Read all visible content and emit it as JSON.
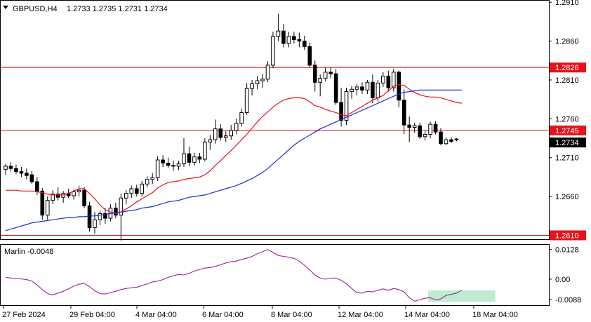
{
  "header": {
    "symbol_text": "GBPUSD,H4",
    "ohlc_text": "1.2733 1.2735 1.2731 1.2734"
  },
  "indicator": {
    "label_text": "Marlin -0.0048"
  },
  "colors": {
    "background": "#ffffff",
    "candle": "#000000",
    "fast_ma": "#e8121a",
    "slow_ma": "#1a2bd8",
    "level_line": "#e8121a",
    "marlin": "#9a239e",
    "highlight_box": "#a9e6c2",
    "price_tag": "#000000"
  },
  "chart_data": [
    {
      "type": "candlestick",
      "title": "GBPUSD,H4",
      "ylim": [
        1.2605,
        1.2912
      ],
      "y_ticks": [
        "1.2910",
        "1.2860",
        "1.2810",
        "1.2760",
        "1.2710",
        "1.2660"
      ],
      "x_tick_labels": [
        "27 Feb 2024",
        "29 Feb 04:00",
        "4 Mar 04:00",
        "6 Mar 04:00",
        "8 Mar 04:00",
        "12 Mar 04:00",
        "14 Mar 04:00",
        "18 Mar 04:00"
      ],
      "levels": [
        {
          "value": 1.2826,
          "label": "1.2826"
        },
        {
          "value": 1.2745,
          "label": "1.2745"
        },
        {
          "value": 1.261,
          "label": "1.2610"
        }
      ],
      "last_price": {
        "value": 1.2734,
        "label": "1.2734"
      },
      "ohlc": [
        [
          1.2695,
          1.2702,
          1.2688,
          1.2699
        ],
        [
          1.2699,
          1.2704,
          1.2692,
          1.2696
        ],
        [
          1.2696,
          1.2701,
          1.2689,
          1.2692
        ],
        [
          1.2692,
          1.2698,
          1.2685,
          1.269
        ],
        [
          1.269,
          1.2696,
          1.2682,
          1.2687
        ],
        [
          1.2688,
          1.2693,
          1.2676,
          1.2679
        ],
        [
          1.2679,
          1.2685,
          1.2662,
          1.2667
        ],
        [
          1.2667,
          1.2671,
          1.263,
          1.2636
        ],
        [
          1.2636,
          1.266,
          1.263,
          1.2655
        ],
        [
          1.2655,
          1.2668,
          1.265,
          1.2663
        ],
        [
          1.2663,
          1.2672,
          1.2655,
          1.2659
        ],
        [
          1.2659,
          1.2667,
          1.2652,
          1.2664
        ],
        [
          1.2664,
          1.267,
          1.2658,
          1.2661
        ],
        [
          1.2661,
          1.2669,
          1.2656,
          1.2666
        ],
        [
          1.2666,
          1.2674,
          1.266,
          1.2668
        ],
        [
          1.2668,
          1.2672,
          1.2645,
          1.2648
        ],
        [
          1.2648,
          1.2653,
          1.2615,
          1.262
        ],
        [
          1.262,
          1.264,
          1.2612,
          1.263
        ],
        [
          1.263,
          1.2642,
          1.2623,
          1.2638
        ],
        [
          1.2638,
          1.2645,
          1.2625,
          1.2632
        ],
        [
          1.2632,
          1.265,
          1.2628,
          1.2645
        ],
        [
          1.2645,
          1.2652,
          1.2632,
          1.2636
        ],
        [
          1.2636,
          1.2664,
          1.2603,
          1.2658
        ],
        [
          1.2658,
          1.2668,
          1.265,
          1.2664
        ],
        [
          1.2664,
          1.2674,
          1.2658,
          1.267
        ],
        [
          1.267,
          1.2675,
          1.266,
          1.2664
        ],
        [
          1.2664,
          1.268,
          1.266,
          1.2676
        ],
        [
          1.2676,
          1.2686,
          1.2672,
          1.2682
        ],
        [
          1.2682,
          1.269,
          1.2676,
          1.2684
        ],
        [
          1.2684,
          1.2712,
          1.268,
          1.2707
        ],
        [
          1.2707,
          1.2713,
          1.2698,
          1.2703
        ],
        [
          1.2703,
          1.271,
          1.2697,
          1.27
        ],
        [
          1.27,
          1.2706,
          1.2693,
          1.2699
        ],
        [
          1.2699,
          1.2706,
          1.2694,
          1.2702
        ],
        [
          1.2702,
          1.2735,
          1.2698,
          1.2715
        ],
        [
          1.2715,
          1.2724,
          1.2699,
          1.2704
        ],
        [
          1.2704,
          1.2716,
          1.27,
          1.2711
        ],
        [
          1.2711,
          1.2716,
          1.2703,
          1.2708
        ],
        [
          1.2708,
          1.2735,
          1.2705,
          1.273
        ],
        [
          1.273,
          1.2739,
          1.272,
          1.2733
        ],
        [
          1.2733,
          1.2759,
          1.2728,
          1.2747
        ],
        [
          1.2747,
          1.2753,
          1.2732,
          1.2736
        ],
        [
          1.2736,
          1.2744,
          1.273,
          1.2738
        ],
        [
          1.2738,
          1.2752,
          1.2733,
          1.2745
        ],
        [
          1.2745,
          1.276,
          1.274,
          1.2754
        ],
        [
          1.2754,
          1.2773,
          1.275,
          1.2768
        ],
        [
          1.2768,
          1.2806,
          1.2765,
          1.2799
        ],
        [
          1.2799,
          1.281,
          1.279,
          1.2805
        ],
        [
          1.2805,
          1.2815,
          1.2798,
          1.2809
        ],
        [
          1.2809,
          1.2818,
          1.28,
          1.2811
        ],
        [
          1.2811,
          1.2834,
          1.2807,
          1.2829
        ],
        [
          1.2829,
          1.2872,
          1.2825,
          1.2866
        ],
        [
          1.2866,
          1.2895,
          1.286,
          1.2873
        ],
        [
          1.2873,
          1.2882,
          1.2852,
          1.2857
        ],
        [
          1.2857,
          1.2872,
          1.2852,
          1.2866
        ],
        [
          1.2866,
          1.2872,
          1.2857,
          1.2862
        ],
        [
          1.2862,
          1.2871,
          1.2852,
          1.286
        ],
        [
          1.286,
          1.2867,
          1.2849,
          1.2853
        ],
        [
          1.2853,
          1.2858,
          1.2826,
          1.2829
        ],
        [
          1.2829,
          1.2835,
          1.2795,
          1.2807
        ],
        [
          1.2807,
          1.2817,
          1.2789,
          1.2812
        ],
        [
          1.2812,
          1.2826,
          1.2808,
          1.282
        ],
        [
          1.282,
          1.2826,
          1.2812,
          1.2818
        ],
        [
          1.2818,
          1.2824,
          1.2778,
          1.2781
        ],
        [
          1.2781,
          1.28,
          1.275,
          1.2758
        ],
        [
          1.2758,
          1.28,
          1.2752,
          1.2795
        ],
        [
          1.2795,
          1.2802,
          1.2786,
          1.2798
        ],
        [
          1.2798,
          1.2805,
          1.279,
          1.2801
        ],
        [
          1.2801,
          1.2807,
          1.2792,
          1.2797
        ],
        [
          1.2797,
          1.281,
          1.2792,
          1.2807
        ],
        [
          1.2807,
          1.2817,
          1.278,
          1.2787
        ],
        [
          1.2787,
          1.281,
          1.2782,
          1.2806
        ],
        [
          1.2806,
          1.282,
          1.2801,
          1.2815
        ],
        [
          1.2815,
          1.2822,
          1.2795,
          1.28
        ],
        [
          1.28,
          1.2824,
          1.2795,
          1.282
        ],
        [
          1.282,
          1.2822,
          1.2775,
          1.2784
        ],
        [
          1.2784,
          1.2798,
          1.274,
          1.2752
        ],
        [
          1.2752,
          1.2763,
          1.273,
          1.2749
        ],
        [
          1.2749,
          1.2755,
          1.2742,
          1.2751
        ],
        [
          1.2751,
          1.2755,
          1.2734,
          1.2737
        ],
        [
          1.2737,
          1.2745,
          1.2732,
          1.274
        ],
        [
          1.274,
          1.2756,
          1.2735,
          1.2753
        ],
        [
          1.2753,
          1.2757,
          1.274,
          1.2743
        ],
        [
          1.2743,
          1.2748,
          1.2726,
          1.2728
        ],
        [
          1.2728,
          1.2736,
          1.2726,
          1.2733
        ],
        [
          1.2733,
          1.2736,
          1.2729,
          1.2731
        ],
        [
          1.2733,
          1.2735,
          1.2731,
          1.2734
        ]
      ],
      "series": [
        {
          "name": "",
          "color": "#e8121a",
          "values": [
            1.2668,
            1.2668,
            1.2668,
            1.2667,
            1.2667,
            1.2667,
            1.2666,
            1.2665,
            1.2663,
            1.2662,
            1.2662,
            1.2662,
            1.2664,
            1.2667,
            1.267,
            1.267,
            1.2664,
            1.2657,
            1.2649,
            1.2643,
            1.264,
            1.2638,
            1.264,
            1.2644,
            1.2648,
            1.2653,
            1.2657,
            1.2661,
            1.2665,
            1.2671,
            1.2675,
            1.2678,
            1.2679,
            1.268,
            1.2682,
            1.2683,
            1.2684,
            1.2685,
            1.2688,
            1.2693,
            1.27,
            1.2706,
            1.2713,
            1.2719,
            1.2726,
            1.2733,
            1.274,
            1.2748,
            1.2756,
            1.2763,
            1.2769,
            1.2775,
            1.278,
            1.2784,
            1.2786,
            1.2787,
            1.2787,
            1.2786,
            1.2782,
            1.2777,
            1.2775,
            1.2772,
            1.277,
            1.2768,
            1.2765,
            1.2764,
            1.2768,
            1.2772,
            1.2776,
            1.278,
            1.2784,
            1.2787,
            1.279,
            1.2796,
            1.2802,
            1.2804,
            1.2803,
            1.2798,
            1.2794,
            1.2791,
            1.2789,
            1.2788,
            1.2788,
            1.2787,
            1.2785,
            1.2783,
            1.2781,
            1.278
          ]
        },
        {
          "name": "",
          "color": "#1a2bd8",
          "values": [
            1.2616,
            1.2618,
            1.262,
            1.2622,
            1.2624,
            1.2626,
            1.2627,
            1.2628,
            1.2629,
            1.263,
            1.2631,
            1.2632,
            1.2633,
            1.2633,
            1.2634,
            1.2634,
            1.2635,
            1.2635,
            1.2636,
            1.2637,
            1.2638,
            1.2639,
            1.264,
            1.2641,
            1.2642,
            1.2643,
            1.2645,
            1.2646,
            1.2647,
            1.2649,
            1.2651,
            1.2653,
            1.2654,
            1.2655,
            1.2657,
            1.2659,
            1.266,
            1.2661,
            1.2662,
            1.2664,
            1.2666,
            1.2668,
            1.267,
            1.2672,
            1.2674,
            1.2677,
            1.268,
            1.2683,
            1.2687,
            1.2691,
            1.2696,
            1.2702,
            1.2708,
            1.2714,
            1.272,
            1.2726,
            1.2731,
            1.2735,
            1.2739,
            1.2743,
            1.2747,
            1.275,
            1.2753,
            1.2756,
            1.2759,
            1.2762,
            1.2765,
            1.2768,
            1.2771,
            1.2774,
            1.2777,
            1.278,
            1.2783,
            1.2786,
            1.2789,
            1.2792,
            1.2794,
            1.2795,
            1.2796,
            1.2797,
            1.2797,
            1.2797,
            1.2797,
            1.2797,
            1.2797,
            1.2797,
            1.2797,
            1.2797
          ]
        }
      ]
    },
    {
      "type": "line",
      "title": "Marlin -0.0048",
      "ylim": [
        -0.0112,
        0.0148
      ],
      "y_ticks": [
        "0.0128",
        "0.00",
        "-0.0088"
      ],
      "series": [
        {
          "name": "Marlin",
          "color": "#9a239e",
          "values": [
            0.0008,
            0.0005,
            0.0002,
            0.0001,
            -0.0002,
            -0.0008,
            -0.0025,
            -0.0045,
            -0.0062,
            -0.0068,
            -0.006,
            -0.0052,
            -0.0042,
            -0.003,
            -0.0022,
            -0.0018,
            -0.0032,
            -0.005,
            -0.0062,
            -0.0064,
            -0.0058,
            -0.0052,
            -0.0045,
            -0.004,
            -0.0037,
            -0.0035,
            -0.0028,
            -0.002,
            -0.0012,
            -0.0008,
            -0.0002,
            0.0008,
            0.0015,
            0.002,
            0.0018,
            0.0025,
            0.0035,
            0.0042,
            0.0048,
            0.005,
            0.0055,
            0.0062,
            0.007,
            0.0075,
            0.0078,
            0.0085,
            0.009,
            0.0098,
            0.011,
            0.0118,
            0.0128,
            0.0115,
            0.0102,
            0.0098,
            0.0095,
            0.009,
            0.0078,
            0.006,
            0.004,
            0.0018,
            0.0005,
            0.0,
            0.0004,
            0.0005,
            -0.0005,
            -0.002,
            -0.004,
            -0.0058,
            -0.006,
            -0.0052,
            -0.0055,
            -0.0048,
            -0.0042,
            -0.0048,
            -0.004,
            -0.0045,
            -0.0055,
            -0.008,
            -0.0095,
            -0.0088,
            -0.0082,
            -0.008,
            -0.009,
            -0.0085,
            -0.007,
            -0.0065,
            -0.006,
            -0.0048
          ]
        }
      ],
      "highlight_range": {
        "start_index": 81,
        "end_index": 93,
        "y_from": -0.0098,
        "y_to": -0.0048
      }
    }
  ]
}
